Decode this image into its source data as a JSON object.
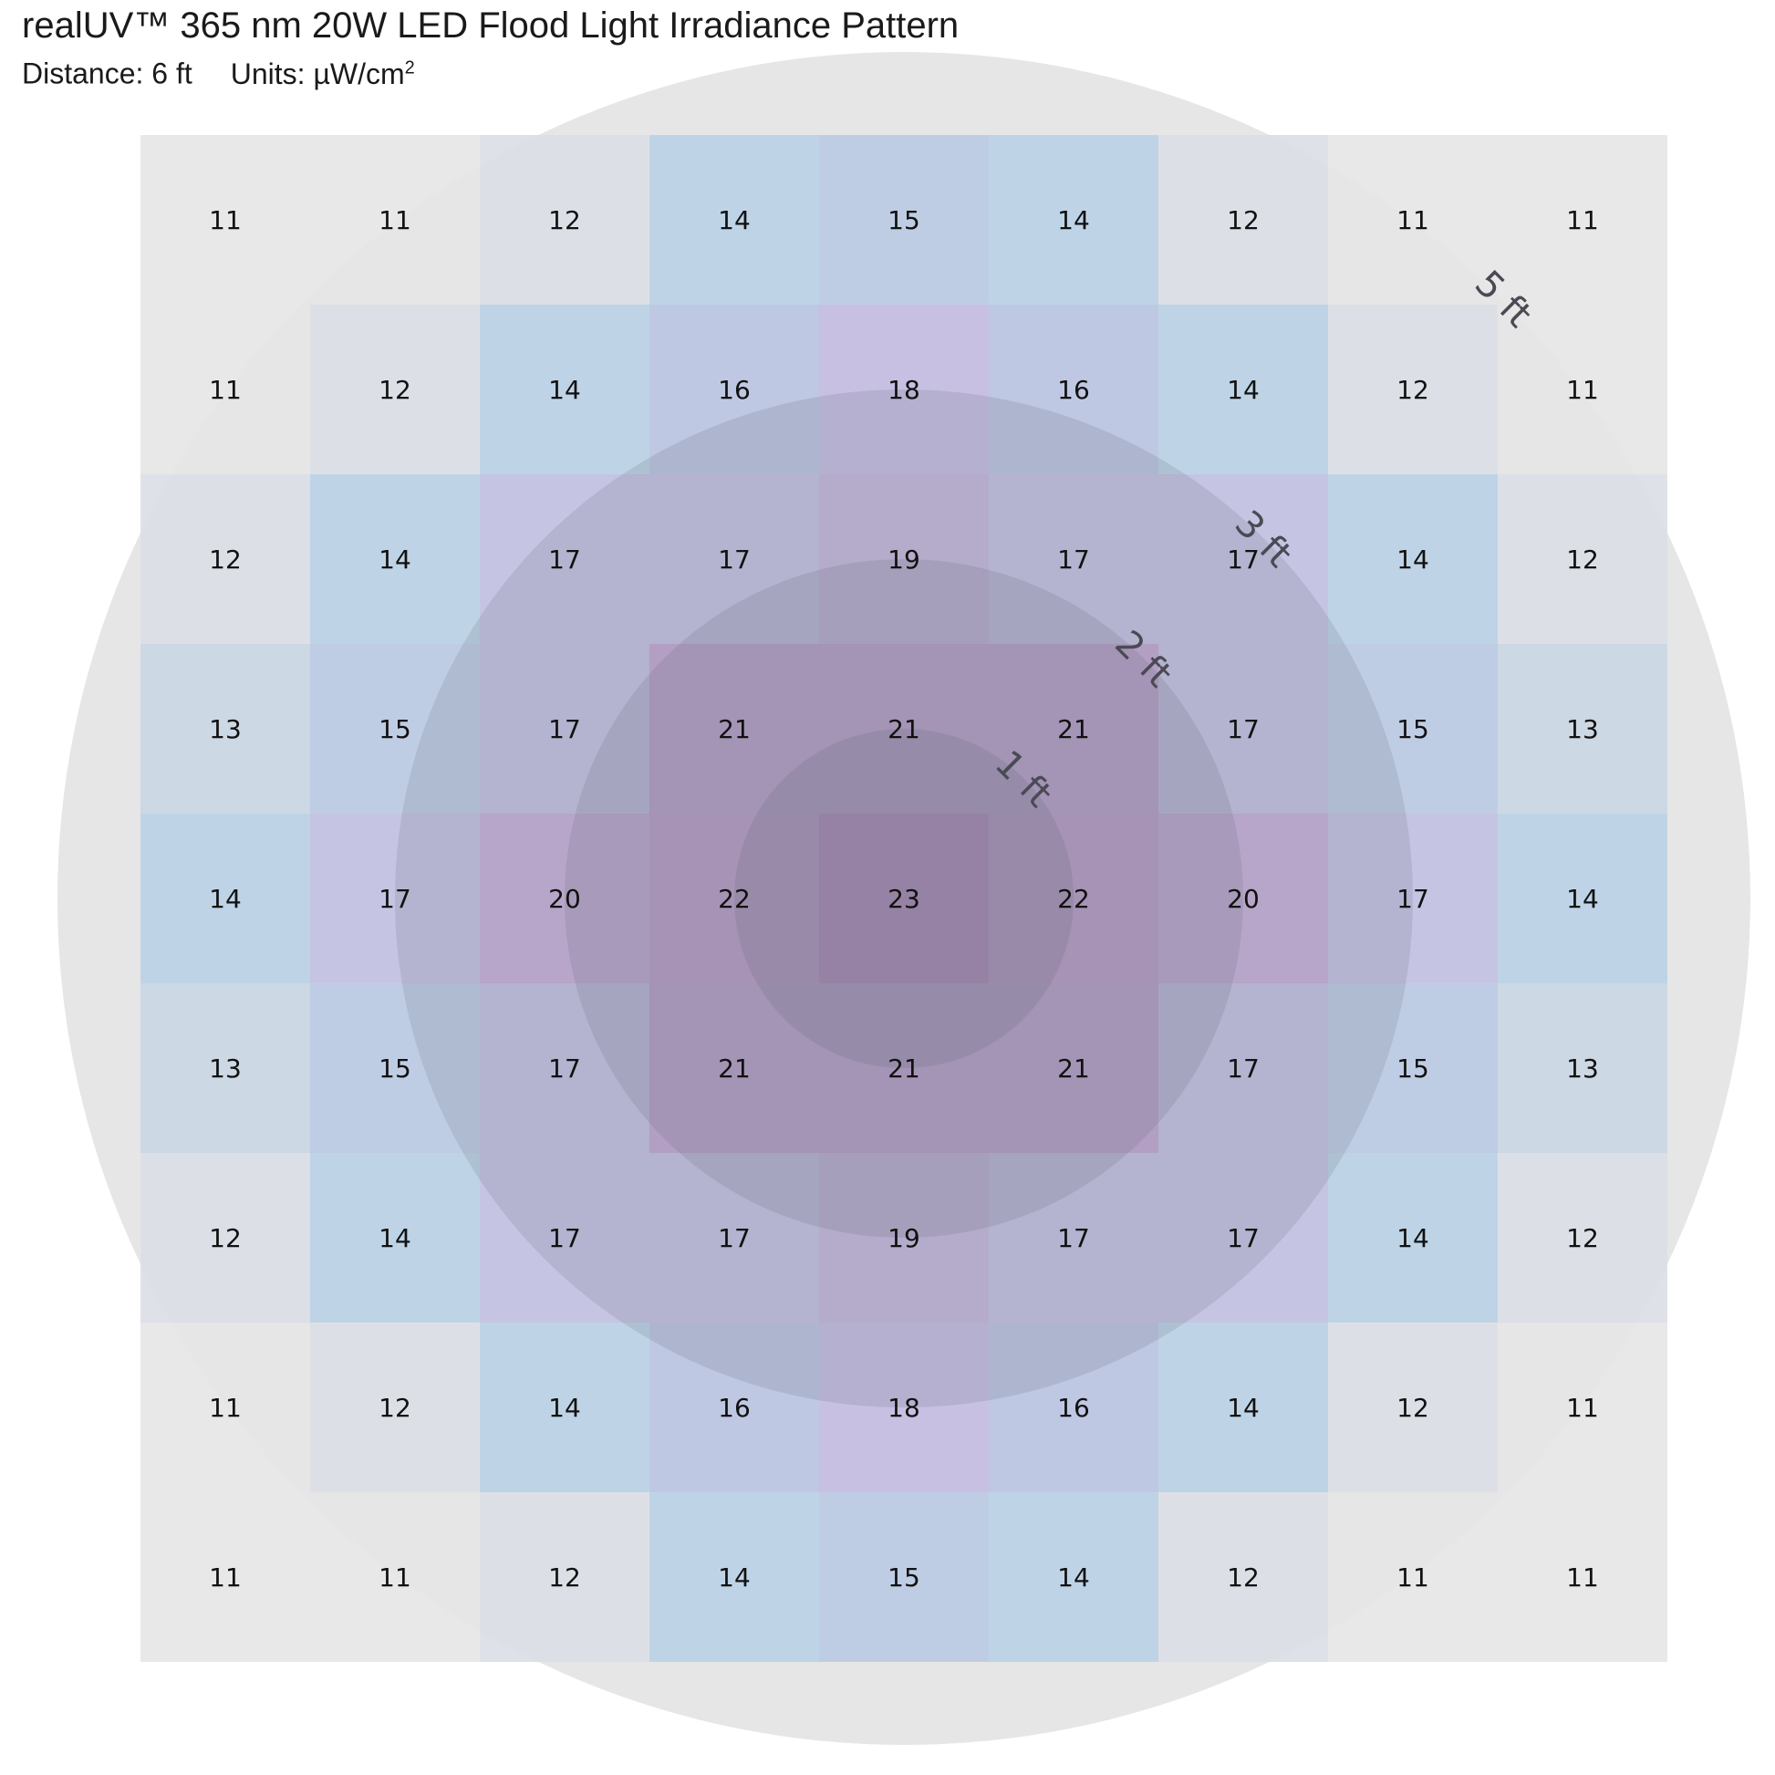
{
  "header": {
    "title": "realUV™ 365 nm 20W LED Flood Light Irradiance Pattern",
    "distance": "Distance: 6 ft",
    "units_prefix": "Units: µW/cm",
    "units_sup": "2"
  },
  "chart_data": {
    "type": "heatmap",
    "title": "realUV™ 365 nm 20W LED Flood Light Irradiance Pattern",
    "distance": "Distance: 6 ft",
    "units": "µW/cm²",
    "values": [
      [
        11,
        11,
        12,
        14,
        15,
        14,
        12,
        11,
        11
      ],
      [
        11,
        12,
        14,
        16,
        18,
        16,
        14,
        12,
        11
      ],
      [
        12,
        14,
        17,
        17,
        19,
        17,
        17,
        14,
        12
      ],
      [
        13,
        15,
        17,
        21,
        21,
        21,
        17,
        15,
        13
      ],
      [
        14,
        17,
        20,
        22,
        23,
        22,
        20,
        17,
        14
      ],
      [
        13,
        15,
        17,
        21,
        21,
        21,
        17,
        15,
        13
      ],
      [
        12,
        14,
        17,
        17,
        19,
        17,
        17,
        14,
        12
      ],
      [
        11,
        12,
        14,
        16,
        18,
        16,
        14,
        12,
        11
      ],
      [
        11,
        11,
        12,
        14,
        15,
        14,
        12,
        11,
        11
      ]
    ],
    "rings": [
      {
        "label": "1 ft",
        "radius_ft": 1
      },
      {
        "label": "2 ft",
        "radius_ft": 2
      },
      {
        "label": "3 ft",
        "radius_ft": 3
      },
      {
        "label": "5 ft",
        "radius_ft": 5
      }
    ],
    "colors": {
      "11": "#e6e6e6",
      "12": "#dbdfe6",
      "13": "#cad7e4",
      "14": "#bbd2e6",
      "15": "#bccbe4",
      "16": "#bcc5e2",
      "17": "#c3c1e3",
      "18": "#c4bde2",
      "19": "#c4b7dc",
      "20": "#c8b0d9",
      "21": "#c2a7d2",
      "22": "#c6a6d4",
      "23": "#bf98c8"
    },
    "ring_color": "#5a5f6e",
    "outer_circle_color": "#e6e6e6"
  }
}
